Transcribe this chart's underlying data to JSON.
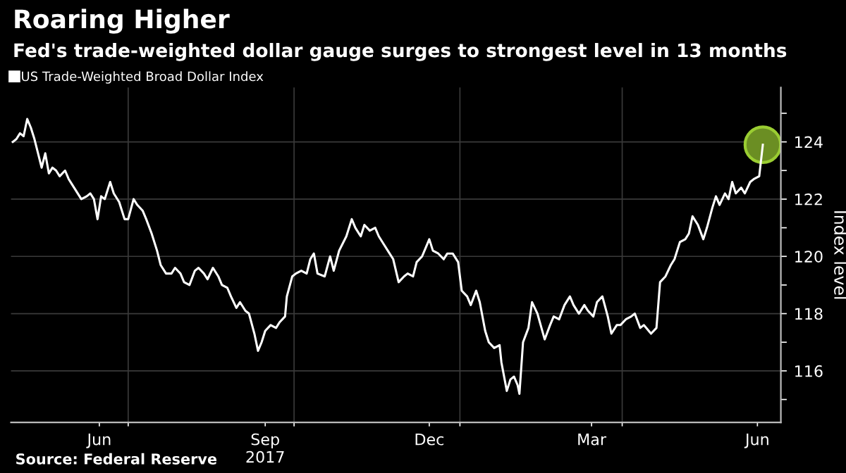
{
  "chart_data": {
    "type": "line",
    "title": "Roaring Higher",
    "subtitle": "Fed's trade-weighted dollar gauge surges to strongest level in 13 months",
    "ylabel": "Index level",
    "annotations": [
      "Source: Federal Reserve"
    ],
    "legend": "top left",
    "grid": true,
    "xlim": [
      "2017-04-27",
      "2018-06-28"
    ],
    "ylim": [
      114.2,
      125.9
    ],
    "xticks": [
      {
        "value": "2017-06-15",
        "label": "Jun"
      },
      {
        "value": "2017-07-01",
        "label": null
      },
      {
        "value": "2017-09-15",
        "label": "Sep\n2017"
      },
      {
        "value": "2017-10-01",
        "label": null
      },
      {
        "value": "2017-12-15",
        "label": "Dec"
      },
      {
        "value": "2018-01-01",
        "label": null
      },
      {
        "value": "2018-03-15",
        "label": "Mar"
      },
      {
        "value": "2018-04-01",
        "label": null
      },
      {
        "value": "2018-06-15",
        "label": "Jun"
      }
    ],
    "yticks": [
      {
        "value": 115,
        "label": null
      },
      116,
      {
        "value": 117,
        "label": null
      },
      118,
      {
        "value": 119,
        "label": null
      },
      120,
      {
        "value": 121,
        "label": null
      },
      122,
      {
        "value": 123,
        "label": null
      },
      124,
      {
        "value": 125,
        "label": null
      }
    ],
    "series": [
      {
        "name": "US Trade-Weighted Broad Dollar Index",
        "color": "#ffffff",
        "marker": "none",
        "line_style": "solid",
        "x": [
          "2017-04-28",
          "2017-04-30",
          "2017-05-02",
          "2017-05-04",
          "2017-05-06",
          "2017-05-08",
          "2017-05-10",
          "2017-05-12",
          "2017-05-14",
          "2017-05-16",
          "2017-05-18",
          "2017-05-20",
          "2017-05-22",
          "2017-05-24",
          "2017-05-27",
          "2017-05-29",
          "2017-06-01",
          "2017-06-05",
          "2017-06-08",
          "2017-06-10",
          "2017-06-12",
          "2017-06-14",
          "2017-06-16",
          "2017-06-18",
          "2017-06-21",
          "2017-06-23",
          "2017-06-26",
          "2017-06-29",
          "2017-07-01",
          "2017-07-04",
          "2017-07-06",
          "2017-07-09",
          "2017-07-11",
          "2017-07-14",
          "2017-07-17",
          "2017-07-19",
          "2017-07-22",
          "2017-07-25",
          "2017-07-27",
          "2017-07-30",
          "2017-08-01",
          "2017-08-04",
          "2017-08-07",
          "2017-08-09",
          "2017-08-12",
          "2017-08-14",
          "2017-08-17",
          "2017-08-20",
          "2017-08-22",
          "2017-08-25",
          "2017-08-27",
          "2017-08-30",
          "2017-09-01",
          "2017-09-04",
          "2017-09-06",
          "2017-09-09",
          "2017-09-11",
          "2017-09-13",
          "2017-09-15",
          "2017-09-18",
          "2017-09-21",
          "2017-09-23",
          "2017-09-26",
          "2017-09-27",
          "2017-09-30",
          "2017-10-02",
          "2017-10-05",
          "2017-10-08",
          "2017-10-10",
          "2017-10-12",
          "2017-10-14",
          "2017-10-18",
          "2017-10-21",
          "2017-10-23",
          "2017-10-26",
          "2017-10-30",
          "2017-11-02",
          "2017-11-04",
          "2017-11-07",
          "2017-11-09",
          "2017-11-12",
          "2017-11-15",
          "2017-11-17",
          "2017-11-20",
          "2017-11-22",
          "2017-11-25",
          "2017-11-28",
          "2017-12-01",
          "2017-12-03",
          "2017-12-06",
          "2017-12-08",
          "2017-12-11",
          "2017-12-13",
          "2017-12-15",
          "2017-12-17",
          "2017-12-20",
          "2017-12-23",
          "2017-12-25",
          "2017-12-28",
          "2017-12-31",
          "2018-01-02",
          "2018-01-05",
          "2018-01-07",
          "2018-01-10",
          "2018-01-12",
          "2018-01-15",
          "2018-01-17",
          "2018-01-20",
          "2018-01-23",
          "2018-01-24",
          "2018-01-27",
          "2018-01-29",
          "2018-01-31",
          "2018-02-02",
          "2018-02-03",
          "2018-02-05",
          "2018-02-08",
          "2018-02-10",
          "2018-02-13",
          "2018-02-17",
          "2018-02-20",
          "2018-02-22",
          "2018-02-25",
          "2018-02-28",
          "2018-03-03",
          "2018-03-05",
          "2018-03-08",
          "2018-03-11",
          "2018-03-13",
          "2018-03-16",
          "2018-03-18",
          "2018-03-21",
          "2018-03-24",
          "2018-03-26",
          "2018-03-29",
          "2018-03-31",
          "2018-04-03",
          "2018-04-06",
          "2018-04-08",
          "2018-04-11",
          "2018-04-13",
          "2018-04-17",
          "2018-04-20",
          "2018-04-22",
          "2018-04-25",
          "2018-04-28",
          "2018-04-30",
          "2018-05-03",
          "2018-05-06",
          "2018-05-08",
          "2018-05-10",
          "2018-05-13",
          "2018-05-16",
          "2018-05-18",
          "2018-05-21",
          "2018-05-23",
          "2018-05-25",
          "2018-05-28",
          "2018-05-30",
          "2018-06-01",
          "2018-06-03",
          "2018-06-06",
          "2018-06-08",
          "2018-06-11",
          "2018-06-13",
          "2018-06-16",
          "2018-06-18"
        ],
        "values": [
          124.0,
          124.1,
          124.3,
          124.2,
          124.8,
          124.5,
          124.1,
          123.6,
          123.1,
          123.6,
          122.9,
          123.1,
          123.0,
          122.8,
          123.0,
          122.7,
          122.4,
          122.0,
          122.1,
          122.2,
          122.0,
          121.3,
          122.1,
          122.0,
          122.6,
          122.2,
          121.9,
          121.3,
          121.3,
          122.0,
          121.8,
          121.6,
          121.3,
          120.8,
          120.2,
          119.7,
          119.4,
          119.4,
          119.6,
          119.4,
          119.1,
          119.0,
          119.5,
          119.6,
          119.4,
          119.2,
          119.6,
          119.3,
          119.0,
          118.9,
          118.6,
          118.2,
          118.4,
          118.1,
          118.0,
          117.3,
          116.7,
          117.0,
          117.4,
          117.6,
          117.5,
          117.7,
          117.9,
          118.6,
          119.3,
          119.4,
          119.5,
          119.4,
          119.9,
          120.1,
          119.4,
          119.3,
          120.0,
          119.5,
          120.2,
          120.7,
          121.3,
          121.0,
          120.7,
          121.1,
          120.9,
          121.0,
          120.7,
          120.4,
          120.2,
          119.9,
          119.1,
          119.3,
          119.4,
          119.3,
          119.8,
          120.0,
          120.3,
          120.6,
          120.2,
          120.1,
          119.9,
          120.1,
          120.1,
          119.8,
          118.8,
          118.6,
          118.3,
          118.8,
          118.4,
          117.4,
          117.0,
          116.8,
          116.9,
          116.3,
          115.3,
          115.7,
          115.8,
          115.5,
          115.2,
          117.0,
          117.5,
          118.4,
          118.0,
          117.1,
          117.6,
          117.9,
          117.8,
          118.3,
          118.6,
          118.3,
          118.0,
          118.3,
          118.1,
          117.9,
          118.4,
          118.6,
          117.9,
          117.3,
          117.6,
          117.6,
          117.8,
          117.9,
          118.0,
          117.5,
          117.6,
          117.3,
          117.5,
          119.1,
          119.3,
          119.7,
          119.9,
          120.5,
          120.6,
          120.8,
          121.4,
          121.1,
          120.6,
          121.0,
          121.7,
          122.1,
          121.8,
          122.2,
          122.0,
          122.6,
          122.2,
          122.4,
          122.2,
          122.6,
          122.7,
          122.8,
          123.9
        ]
      },
      {
        "type": "scatter",
        "color": "#6b8e23",
        "marker": "circle",
        "x": [
          "2018-06-18"
        ],
        "values": [
          123.9
        ]
      }
    ]
  }
}
